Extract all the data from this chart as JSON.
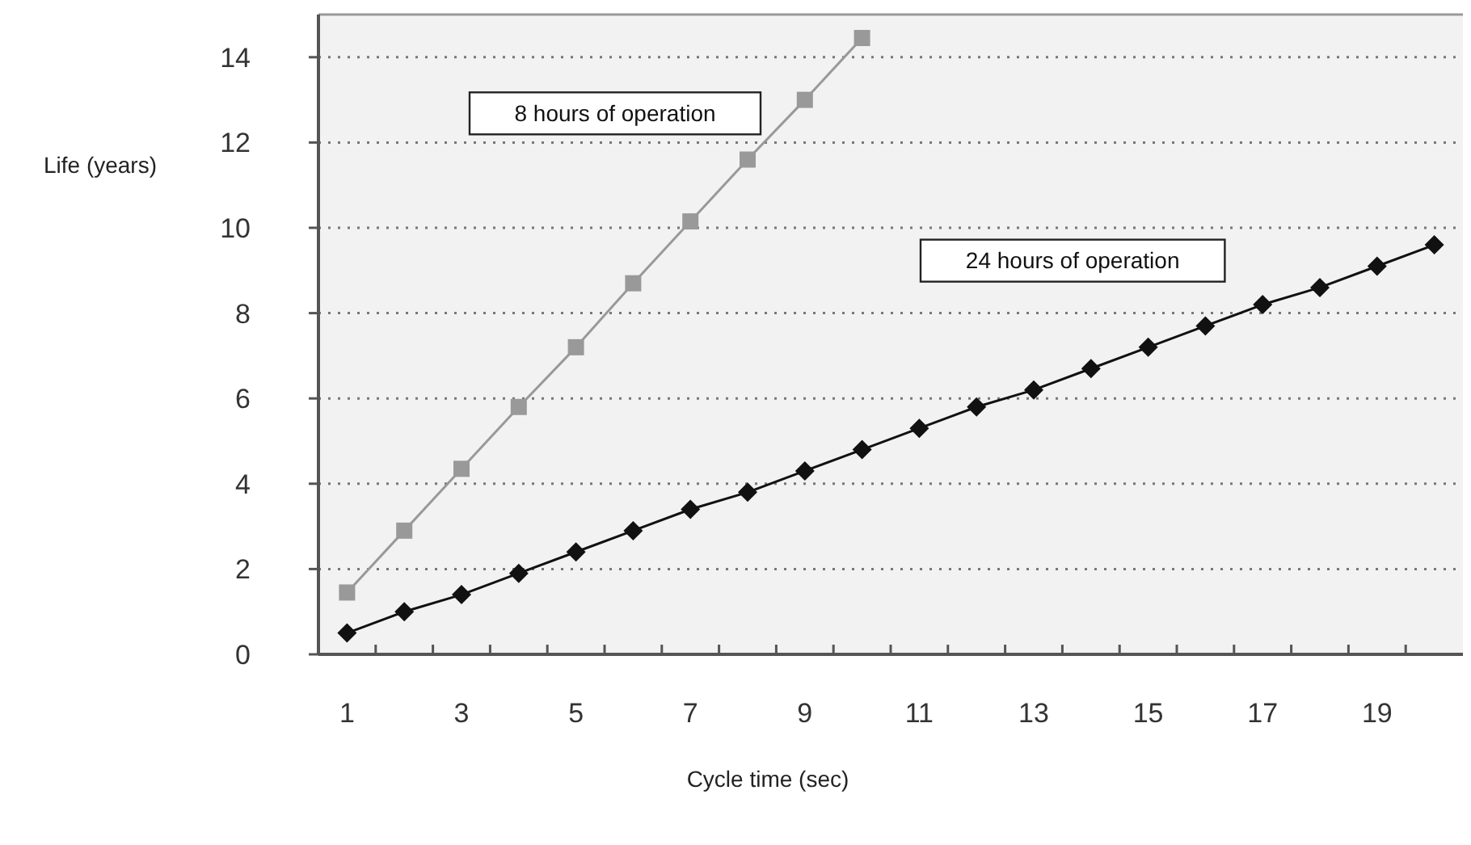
{
  "chart_data": {
    "type": "line",
    "xlabel": "Cycle time (sec)",
    "ylabel": "Life (years)",
    "x": [
      1,
      2,
      3,
      4,
      5,
      6,
      7,
      8,
      9,
      10,
      11,
      12,
      13,
      14,
      15,
      16,
      17,
      18,
      19,
      20
    ],
    "xlim": [
      0.5,
      20.5
    ],
    "xticks": [
      1,
      3,
      5,
      7,
      9,
      11,
      13,
      15,
      17,
      19,
      {
        "value": 1.5,
        "label": null
      },
      {
        "value": 2.5,
        "label": null
      },
      {
        "value": 3.5,
        "label": null
      },
      {
        "value": 4.5,
        "label": null
      },
      {
        "value": 5.5,
        "label": null
      },
      {
        "value": 6.5,
        "label": null
      },
      {
        "value": 7.5,
        "label": null
      },
      {
        "value": 8.5,
        "label": null
      },
      {
        "value": 9.5,
        "label": null
      },
      {
        "value": 10.5,
        "label": null
      },
      {
        "value": 11.5,
        "label": null
      },
      {
        "value": 12.5,
        "label": null
      },
      {
        "value": 13.5,
        "label": null
      },
      {
        "value": 14.5,
        "label": null
      },
      {
        "value": 15.5,
        "label": null
      },
      {
        "value": 16.5,
        "label": null
      },
      {
        "value": 17.5,
        "label": null
      },
      {
        "value": 18.5,
        "label": null
      },
      {
        "value": 19.5,
        "label": null
      }
    ],
    "series": [
      {
        "name": "8 hours of operation",
        "color": "#999999",
        "marker": "square",
        "values": [
          1.45,
          2.9,
          4.35,
          5.8,
          7.2,
          8.7,
          10.15,
          11.6,
          13.0,
          14.45,
          null,
          null,
          null,
          null,
          null,
          null,
          null,
          null,
          null,
          null
        ]
      },
      {
        "name": "24 hours of operation",
        "color": "#111111",
        "marker": "diamond",
        "values": [
          0.5,
          1.0,
          1.4,
          1.9,
          2.4,
          2.9,
          3.4,
          3.8,
          4.3,
          4.8,
          5.3,
          5.8,
          6.2,
          6.7,
          7.2,
          7.7,
          8.2,
          8.6,
          9.1,
          9.6
        ]
      }
    ],
    "ylim": [
      0,
      15
    ],
    "yticks": [
      0,
      2,
      4,
      6,
      8,
      10,
      12,
      14
    ],
    "grid": "y",
    "line_style": "solid"
  }
}
